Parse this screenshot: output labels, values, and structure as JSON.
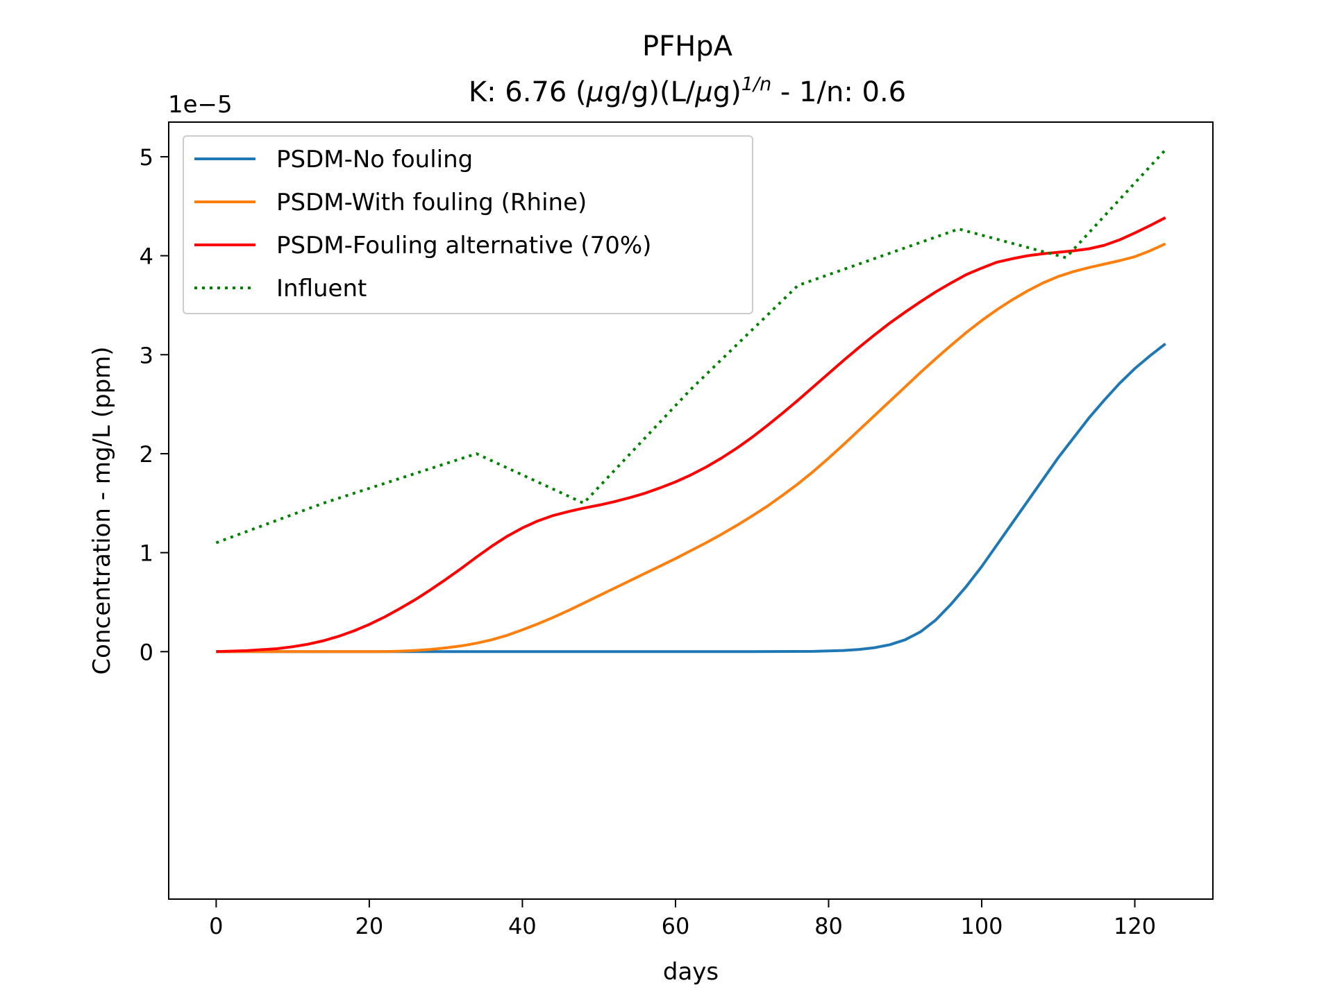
{
  "chart_data": {
    "type": "line",
    "title": "PFHpA",
    "subtitle": {
      "prefix": "K: 6.76 (",
      "mu1": "μ",
      "mid1": "g/g)(L/",
      "mu2": "μ",
      "mid2": "g)",
      "sup": "1/n",
      "suffix": " - 1/n: 0.6"
    },
    "xlabel": "days",
    "ylabel": "Concentration - mg/L (ppm)",
    "y_offset_label": "1e−5",
    "y_scale": 1e-05,
    "xlim": [
      -6.2,
      130.2
    ],
    "ylim": [
      -2.5,
      5.35
    ],
    "x_ticks": [
      0,
      20,
      40,
      60,
      80,
      100,
      120
    ],
    "y_ticks": [
      0,
      1,
      2,
      3,
      4,
      5
    ],
    "grid": false,
    "legend_position": "upper-left",
    "series": [
      {
        "name": "PSDM-No fouling",
        "color": "#1f77b4",
        "style": "solid",
        "x": [
          0,
          70,
          78,
          82,
          84,
          86,
          88,
          90,
          92,
          94,
          96,
          98,
          100,
          102,
          104,
          106,
          108,
          110,
          112,
          114,
          116,
          118,
          120,
          122,
          124
        ],
        "y": [
          0,
          0,
          0.003,
          0.012,
          0.022,
          0.04,
          0.07,
          0.12,
          0.2,
          0.32,
          0.48,
          0.66,
          0.86,
          1.08,
          1.3,
          1.52,
          1.74,
          1.96,
          2.16,
          2.36,
          2.54,
          2.71,
          2.86,
          2.99,
          3.11
        ]
      },
      {
        "name": "PSDM-With fouling (Rhine)",
        "color": "#ff7f0e",
        "style": "solid",
        "x": [
          0,
          22,
          24,
          26,
          28,
          30,
          32,
          34,
          36,
          38,
          40,
          42,
          44,
          46,
          48,
          50,
          52,
          54,
          56,
          58,
          60,
          62,
          64,
          66,
          68,
          70,
          72,
          74,
          76,
          78,
          80,
          82,
          84,
          86,
          88,
          90,
          92,
          94,
          96,
          98,
          100,
          102,
          104,
          106,
          108,
          110,
          112,
          114,
          116,
          118,
          120,
          122,
          124
        ],
        "y": [
          0,
          0,
          0.005,
          0.012,
          0.022,
          0.038,
          0.058,
          0.085,
          0.12,
          0.165,
          0.22,
          0.28,
          0.345,
          0.415,
          0.49,
          0.565,
          0.64,
          0.715,
          0.79,
          0.865,
          0.94,
          1.02,
          1.1,
          1.185,
          1.275,
          1.37,
          1.47,
          1.58,
          1.695,
          1.82,
          1.955,
          2.095,
          2.24,
          2.385,
          2.53,
          2.675,
          2.82,
          2.96,
          3.095,
          3.225,
          3.345,
          3.455,
          3.555,
          3.645,
          3.725,
          3.79,
          3.84,
          3.88,
          3.915,
          3.95,
          3.99,
          4.05,
          4.12
        ]
      },
      {
        "name": "PSDM-Fouling alternative (70%)",
        "color": "#ff0000",
        "style": "solid",
        "x": [
          0,
          4,
          8,
          10,
          12,
          14,
          16,
          18,
          20,
          22,
          24,
          26,
          28,
          30,
          32,
          34,
          36,
          38,
          40,
          42,
          44,
          46,
          48,
          50,
          52,
          54,
          56,
          58,
          60,
          62,
          64,
          66,
          68,
          70,
          72,
          74,
          76,
          78,
          80,
          82,
          84,
          86,
          88,
          90,
          92,
          94,
          96,
          98,
          100,
          102,
          104,
          106,
          108,
          110,
          112,
          114,
          116,
          118,
          120,
          122,
          124
        ],
        "y": [
          0,
          0.01,
          0.03,
          0.05,
          0.075,
          0.11,
          0.155,
          0.21,
          0.275,
          0.35,
          0.435,
          0.525,
          0.625,
          0.73,
          0.84,
          0.955,
          1.065,
          1.165,
          1.25,
          1.32,
          1.375,
          1.415,
          1.45,
          1.48,
          1.515,
          1.555,
          1.6,
          1.655,
          1.715,
          1.785,
          1.865,
          1.955,
          2.055,
          2.165,
          2.285,
          2.41,
          2.54,
          2.675,
          2.81,
          2.945,
          3.075,
          3.2,
          3.32,
          3.43,
          3.535,
          3.635,
          3.725,
          3.81,
          3.875,
          3.935,
          3.97,
          4.0,
          4.02,
          4.035,
          4.05,
          4.07,
          4.105,
          4.16,
          4.23,
          4.305,
          4.385
        ]
      },
      {
        "name": "Influent",
        "color": "#008000",
        "style": "dotted",
        "x": [
          0,
          14,
          34,
          48,
          62,
          76,
          97,
          111,
          124
        ],
        "y": [
          1.1,
          1.5,
          2.0,
          1.5,
          2.65,
          3.7,
          4.27,
          3.98,
          5.07
        ]
      }
    ]
  }
}
